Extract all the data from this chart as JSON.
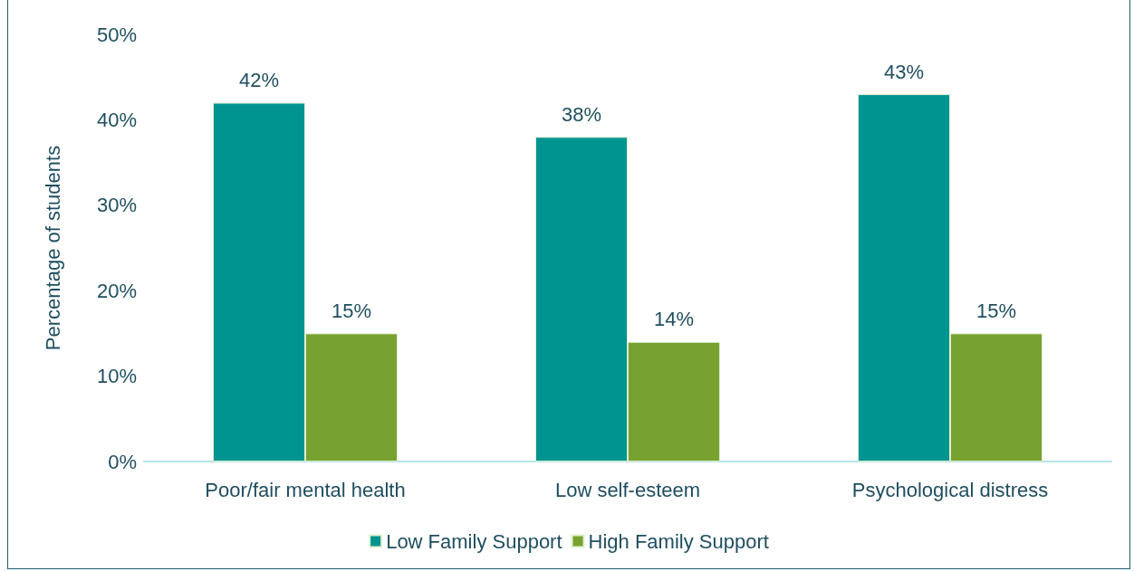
{
  "chart_data": {
    "type": "bar",
    "ylabel": "Percentage of students",
    "categories": [
      "Poor/fair mental health",
      "Low self-esteem",
      "Psychological distress"
    ],
    "series": [
      {
        "name": "Low Family Support",
        "color": "#009490",
        "values": [
          42,
          38,
          43
        ],
        "value_labels": [
          "42%",
          "38%",
          "43%"
        ]
      },
      {
        "name": "High Family Support",
        "color": "#78a22f",
        "values": [
          15,
          14,
          15
        ],
        "value_labels": [
          "15%",
          "14%",
          "15%"
        ]
      }
    ],
    "ylim": [
      0,
      50
    ],
    "yticks": [
      {
        "value": 0,
        "label": "0%"
      },
      {
        "value": 10,
        "label": "10%"
      },
      {
        "value": 20,
        "label": "20%"
      },
      {
        "value": 30,
        "label": "30%"
      },
      {
        "value": 40,
        "label": "40%"
      },
      {
        "value": 50,
        "label": "50%"
      }
    ],
    "grid": false,
    "legend": "bottom"
  }
}
